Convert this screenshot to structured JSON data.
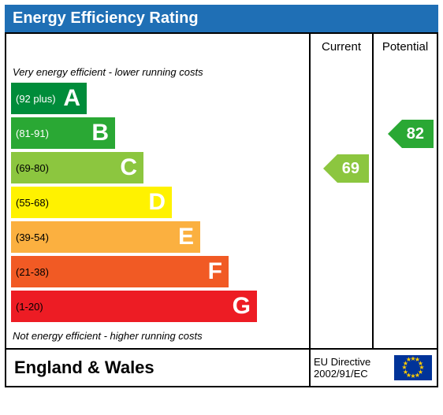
{
  "title": "Energy Efficiency Rating",
  "title_bg": "#1f6fb5",
  "headers": {
    "current": "Current",
    "potential": "Potential"
  },
  "note_top": "Very energy efficient - lower running costs",
  "note_bottom": "Not energy efficient - higher running costs",
  "band_height": 40,
  "base_width": 96,
  "width_step": 36,
  "bands": [
    {
      "letter": "A",
      "range": "(92 plus)",
      "color": "#008c3a",
      "text_on_dark": true
    },
    {
      "letter": "B",
      "range": "(81-91)",
      "color": "#2aa834",
      "text_on_dark": true
    },
    {
      "letter": "C",
      "range": "(69-80)",
      "color": "#8cc63f",
      "text_on_dark": false
    },
    {
      "letter": "D",
      "range": "(55-68)",
      "color": "#fff200",
      "text_on_dark": false
    },
    {
      "letter": "E",
      "range": "(39-54)",
      "color": "#fbb040",
      "text_on_dark": false
    },
    {
      "letter": "F",
      "range": "(21-38)",
      "color": "#f15a24",
      "text_on_dark": false
    },
    {
      "letter": "G",
      "range": "(1-20)",
      "color": "#ed1c24",
      "text_on_dark": false
    }
  ],
  "current": {
    "value": 69,
    "band_index": 2,
    "color": "#8cc63f"
  },
  "potential": {
    "value": 82,
    "band_index": 1,
    "color": "#2aa834"
  },
  "footer": {
    "region": "England & Wales",
    "directive_line1": "EU Directive",
    "directive_line2": "2002/91/EC"
  }
}
